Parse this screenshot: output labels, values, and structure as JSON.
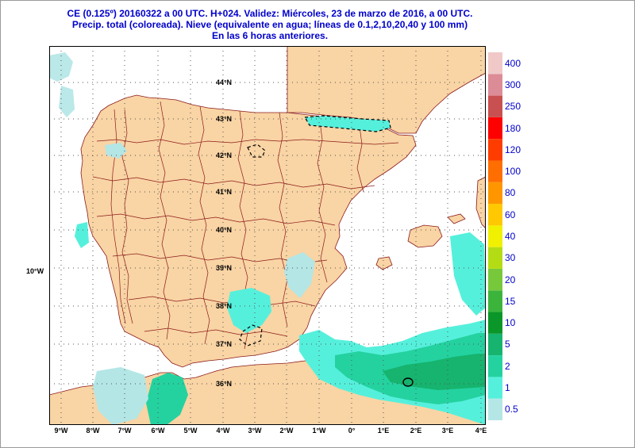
{
  "header": {
    "line1": "CE (0.125º) 20160322 a 00 UTC.  H+024. Validez: Miércoles, 23 de marzo de 2016,  a  00 UTC.",
    "line2": "Precip. total (coloreada). Nieve (equivalente en agua; líneas de 0.1,2,10,20,40 y 100 mm)",
    "line3": "En las 6 horas anteriores."
  },
  "map": {
    "lon_labels": [
      "9°W",
      "8°W",
      "7°W",
      "6°W",
      "5°W",
      "4°W",
      "3°W",
      "2°W",
      "1°W",
      "0°",
      "1°E",
      "2°E",
      "3°E",
      "4°E"
    ],
    "lat_labels": [
      "44°N",
      "43°N",
      "42°N",
      "41°N",
      "40°N",
      "39°N",
      "38°N",
      "37°N",
      "36°N"
    ],
    "side_label": "10°W",
    "colors": {
      "land": "#f9d4a4",
      "sea": "#ffffff",
      "border": "#8b1a1a",
      "grid": "#555555",
      "snow_line": "#000000"
    }
  },
  "legend": {
    "levels": [
      "0.5",
      "1",
      "2",
      "5",
      "10",
      "15",
      "20",
      "30",
      "40",
      "60",
      "80",
      "100",
      "120",
      "180",
      "250",
      "300",
      "400"
    ],
    "colors": [
      "#b4e6e6",
      "#55f0dc",
      "#24d2a0",
      "#16b46e",
      "#0a9628",
      "#3cb43c",
      "#78c83c",
      "#b4dc14",
      "#f0f000",
      "#ffc800",
      "#ff9600",
      "#ff6e00",
      "#ff3c00",
      "#ff0000",
      "#c85050",
      "#dc8c96",
      "#f0c8c8"
    ]
  }
}
